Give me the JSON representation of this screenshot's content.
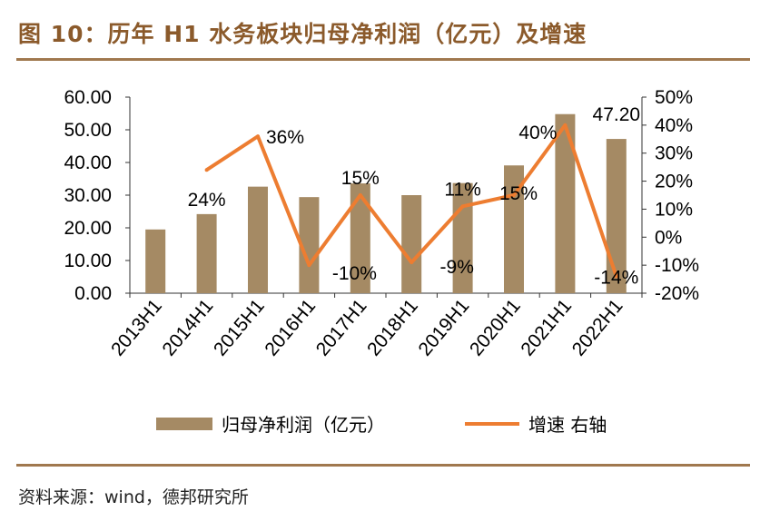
{
  "title": "图 10：历年 H1 水务板块归母净利润（亿元）及增速",
  "source": "资料来源：wind，德邦研究所",
  "colors": {
    "bar": "#A58A64",
    "line": "#ED7D31",
    "accent": "#A0784E",
    "title": "#8B5A2B"
  },
  "chart_data": {
    "type": "bar",
    "categories": [
      "2013H1",
      "2014H1",
      "2015H1",
      "2016H1",
      "2017H1",
      "2018H1",
      "2019H1",
      "2020H1",
      "2021H1",
      "2022H1"
    ],
    "series": [
      {
        "name": "归母净利润（亿元）",
        "type": "bar",
        "axis": "left",
        "values": [
          19.5,
          24.2,
          32.6,
          29.4,
          33.6,
          30.0,
          33.7,
          39.1,
          54.8,
          47.2
        ]
      },
      {
        "name": "增速",
        "type": "line",
        "axis": "right",
        "values": [
          null,
          0.24,
          0.36,
          -0.1,
          0.15,
          -0.09,
          0.11,
          0.15,
          0.4,
          -0.14
        ]
      }
    ],
    "legend": [
      "归母净利润（亿元）",
      "增速 右轴"
    ],
    "legend_placement": "bottom",
    "ylim_left": [
      0,
      60
    ],
    "yticks_left": [
      "0.00",
      "10.00",
      "20.00",
      "30.00",
      "40.00",
      "50.00",
      "60.00"
    ],
    "ylim_right": [
      -0.2,
      0.5
    ],
    "yticks_right": [
      "-20%",
      "-10%",
      "0%",
      "10%",
      "20%",
      "30%",
      "40%",
      "50%"
    ],
    "bar_labels": {
      "9": "47.20"
    },
    "line_labels": [
      "",
      "24%",
      "36%",
      "-10%",
      "15%",
      "-9%",
      "11%",
      "15%",
      "40%",
      "-14%"
    ],
    "grid": false
  }
}
